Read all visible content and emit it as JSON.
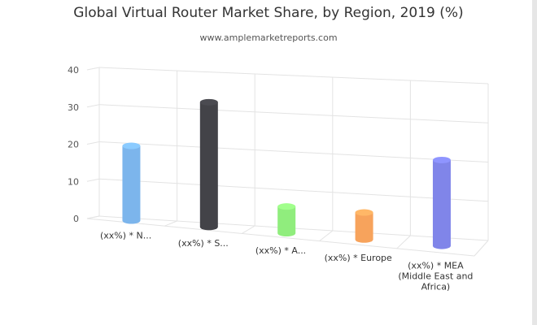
{
  "chart_data": {
    "type": "bar",
    "title": "Global Virtual Router Market Share, by Region, 2019 (%)",
    "subtitle": "www.amplemarketreports.com",
    "categories": [
      "(xx%) * N...",
      "(xx%) * S...",
      "(xx%) * A...",
      "(xx%) * Europe",
      "(xx%) * MEA (Middle East and Africa)"
    ],
    "values": [
      20,
      33,
      7,
      7,
      22
    ],
    "colors": [
      "#7cb5ec",
      "#434348",
      "#90ed7d",
      "#f7a35c",
      "#8085e9"
    ],
    "y_ticks": [
      0,
      10,
      20,
      30,
      40
    ],
    "ylim": [
      0,
      40
    ],
    "grid": true,
    "legend": "none",
    "style": "3d-cylinder"
  }
}
